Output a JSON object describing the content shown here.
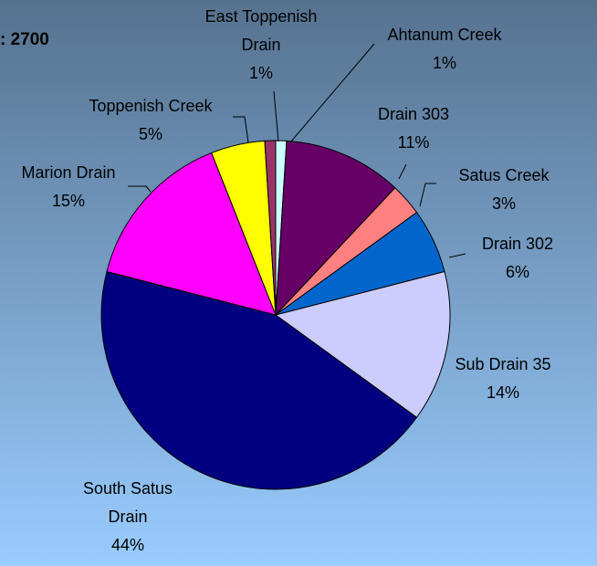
{
  "chart_data": {
    "type": "pie",
    "title": ": 2700",
    "categories": [
      "Ahtanum Creek",
      "Drain 303",
      "Satus Creek",
      "Drain 302",
      "Sub Drain 35",
      "South Satus Drain",
      "Marion Drain",
      "Toppenish Creek",
      "East Toppenish Drain"
    ],
    "values": [
      1,
      11,
      3,
      6,
      14,
      44,
      15,
      5,
      1
    ],
    "value_labels": [
      "1%",
      "11%",
      "3%",
      "6%",
      "14%",
      "44%",
      "15%",
      "5%",
      "1%"
    ],
    "colors": [
      "#ccffff",
      "#660066",
      "#ff8080",
      "#0066cc",
      "#ccccff",
      "#000080",
      "#ff00ff",
      "#ffff00",
      "#993366"
    ]
  }
}
